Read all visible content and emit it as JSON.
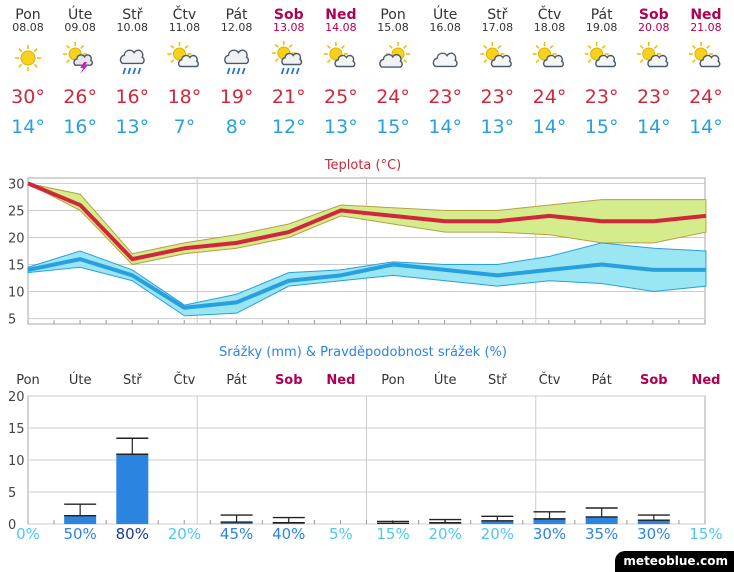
{
  "chart_data": {
    "type": "line",
    "days": [
      {
        "day": "Pon",
        "date": "08.08",
        "weekend": false,
        "icon": "sun-icon",
        "max": 30,
        "min": 14,
        "prec": 0,
        "prec_hi": 0,
        "prob": "0%"
      },
      {
        "day": "Úte",
        "date": "09.08",
        "weekend": false,
        "icon": "sun-cloud-thunder-icon",
        "max": 26,
        "min": 16,
        "prec": 1.3,
        "prec_hi": 3.1,
        "prob": "50%"
      },
      {
        "day": "Stř",
        "date": "10.08",
        "weekend": false,
        "icon": "cloud-rain-icon",
        "max": 16,
        "min": 13,
        "prec": 10.9,
        "prec_hi": 13.4,
        "prob": "80%"
      },
      {
        "day": "Čtv",
        "date": "11.08",
        "weekend": false,
        "icon": "sun-cloud-icon",
        "max": 18,
        "min": 7,
        "prec": 0,
        "prec_hi": 0,
        "prob": "20%"
      },
      {
        "day": "Pát",
        "date": "12.08",
        "weekend": false,
        "icon": "cloud-rain-icon",
        "max": 19,
        "min": 8,
        "prec": 0.3,
        "prec_hi": 1.4,
        "prob": "45%"
      },
      {
        "day": "Sob",
        "date": "13.08",
        "weekend": true,
        "icon": "sun-cloud-rain-icon",
        "max": 21,
        "min": 12,
        "prec": 0.2,
        "prec_hi": 1.0,
        "prob": "40%"
      },
      {
        "day": "Ned",
        "date": "14.08",
        "weekend": true,
        "icon": "sun-cloud-icon",
        "max": 25,
        "min": 13,
        "prec": 0,
        "prec_hi": 0,
        "prob": "5%"
      },
      {
        "day": "Pon",
        "date": "15.08",
        "weekend": false,
        "icon": "cloud-sun-icon",
        "max": 24,
        "min": 15,
        "prec": 0.1,
        "prec_hi": 0.4,
        "prob": "15%"
      },
      {
        "day": "Úte",
        "date": "16.08",
        "weekend": false,
        "icon": "cloud-icon",
        "max": 23,
        "min": 14,
        "prec": 0.2,
        "prec_hi": 0.7,
        "prob": "20%"
      },
      {
        "day": "Stř",
        "date": "17.08",
        "weekend": false,
        "icon": "sun-cloud-icon",
        "max": 23,
        "min": 13,
        "prec": 0.5,
        "prec_hi": 1.2,
        "prob": "20%"
      },
      {
        "day": "Čtv",
        "date": "18.08",
        "weekend": false,
        "icon": "sun-cloud-icon",
        "max": 24,
        "min": 14,
        "prec": 0.8,
        "prec_hi": 1.9,
        "prob": "30%"
      },
      {
        "day": "Pát",
        "date": "19.08",
        "weekend": false,
        "icon": "sun-cloud-icon",
        "max": 23,
        "min": 15,
        "prec": 1.1,
        "prec_hi": 2.5,
        "prob": "35%"
      },
      {
        "day": "Sob",
        "date": "20.08",
        "weekend": true,
        "icon": "sun-cloud-icon",
        "max": 23,
        "min": 14,
        "prec": 0.6,
        "prec_hi": 1.4,
        "prob": "30%"
      },
      {
        "day": "Ned",
        "date": "21.08",
        "weekend": true,
        "icon": "sun-cloud-icon",
        "max": 24,
        "min": 14,
        "prec": 0,
        "prec_hi": 0,
        "prob": "15%"
      }
    ],
    "max_band": [
      [
        30,
        30
      ],
      [
        25,
        28
      ],
      [
        15,
        17
      ],
      [
        17,
        19
      ],
      [
        18,
        20.5
      ],
      [
        20,
        22.5
      ],
      [
        24,
        26
      ],
      [
        22.5,
        25.5
      ],
      [
        21,
        25
      ],
      [
        21,
        25
      ],
      [
        20.5,
        26
      ],
      [
        19,
        27
      ],
      [
        19,
        27
      ],
      [
        21,
        27
      ]
    ],
    "min_band": [
      [
        13.5,
        14.5
      ],
      [
        14.5,
        17.5
      ],
      [
        12,
        14
      ],
      [
        5.5,
        7.5
      ],
      [
        6,
        9.5
      ],
      [
        11,
        13.5
      ],
      [
        12,
        14
      ],
      [
        13,
        15.5
      ],
      [
        12,
        15
      ],
      [
        11,
        15
      ],
      [
        12,
        16.5
      ],
      [
        11.5,
        19
      ],
      [
        10,
        18
      ],
      [
        11,
        17.5
      ]
    ],
    "temp_title": "Teplota (°C)",
    "temp_ylim": [
      4,
      31
    ],
    "temp_ticks": [
      30,
      25,
      20,
      15,
      10,
      5
    ],
    "prec_title": "Srážky (mm) & Pravděpodobnost srážek (%)",
    "prec_ylim": [
      0,
      20
    ],
    "prec_ticks": [
      20,
      15,
      10,
      5,
      0
    ],
    "grid": true,
    "colors": {
      "max": "#d0283a",
      "min": "#28a0e0",
      "max_band": "#d4ec8c",
      "min_band": "#9ae6f2",
      "bar": "#2b85e0",
      "weekend": "#b00050",
      "prob_low": "#4ec8f2",
      "prob_mid": "#2b85e0",
      "prob_high": "#1a3a9c"
    }
  },
  "brand": "meteoblue.com"
}
